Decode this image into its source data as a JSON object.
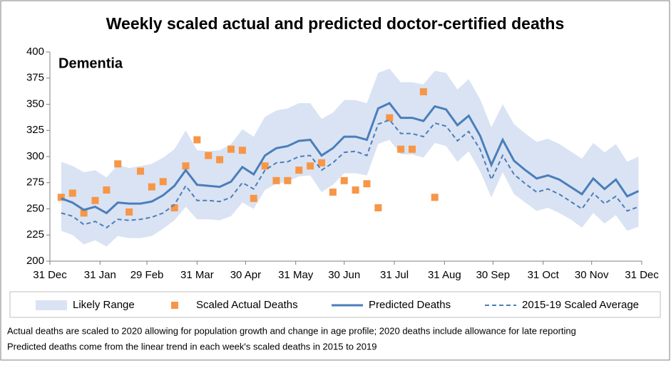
{
  "chart_data": {
    "type": "line",
    "title": "Weekly scaled actual and predicted doctor-certified deaths",
    "annotation": "Dementia",
    "notes": [
      "Actual deaths are scaled to 2020 allowing for population growth and change in age profile; 2020 deaths include allowance for late reporting",
      "Predicted deaths come from the linear trend in each week's scaled deaths in 2015 to 2019"
    ],
    "x": [
      7,
      14,
      21,
      28,
      35,
      42,
      49,
      56,
      63,
      70,
      77,
      84,
      91,
      98,
      105,
      112,
      119,
      126,
      133,
      140,
      147,
      154,
      161,
      168,
      175,
      182,
      189,
      196,
      203,
      210,
      217,
      224,
      231,
      238,
      245,
      252,
      259,
      266,
      273,
      280,
      287,
      294,
      301,
      308,
      315,
      322,
      329,
      336,
      343,
      350,
      357,
      364
    ],
    "xlim": [
      0,
      366
    ],
    "xticks": [
      {
        "value": 0,
        "label": "31 Dec"
      },
      {
        "value": 31,
        "label": "31 Jan"
      },
      {
        "value": 60,
        "label": "29 Feb"
      },
      {
        "value": 91,
        "label": "31 Mar"
      },
      {
        "value": 121,
        "label": "30 Apr"
      },
      {
        "value": 152,
        "label": "31 May"
      },
      {
        "value": 182,
        "label": "30 Jun"
      },
      {
        "value": 213,
        "label": "31 Jul"
      },
      {
        "value": 244,
        "label": "31 Aug"
      },
      {
        "value": 274,
        "label": "30 Sep"
      },
      {
        "value": 305,
        "label": "31 Oct"
      },
      {
        "value": 335,
        "label": "30 Nov"
      },
      {
        "value": 366,
        "label": "31 Dec"
      }
    ],
    "ylim": [
      200,
      400
    ],
    "yticks": [
      200,
      225,
      250,
      275,
      300,
      325,
      350,
      375,
      400
    ],
    "grid": false,
    "series": [
      {
        "name": "Likely Range",
        "kind": "band",
        "color": "#dae3f3",
        "lower": [
          229,
          225,
          216,
          220,
          214,
          224,
          222,
          222,
          224,
          231,
          239,
          252,
          240,
          240,
          239,
          243,
          256,
          250,
          268,
          274,
          276,
          281,
          282,
          266,
          273,
          284,
          284,
          282,
          312,
          316,
          302,
          302,
          299,
          313,
          310,
          295,
          305,
          286,
          261,
          285,
          264,
          256,
          248,
          251,
          246,
          240,
          232,
          246,
          236,
          244,
          229,
          233
        ],
        "upper": [
          295,
          291,
          285,
          287,
          280,
          292,
          289,
          291,
          293,
          299,
          307,
          325,
          306,
          305,
          306,
          312,
          326,
          319,
          338,
          344,
          346,
          351,
          351,
          336,
          342,
          354,
          354,
          351,
          380,
          384,
          371,
          371,
          369,
          382,
          380,
          364,
          374,
          355,
          328,
          350,
          331,
          322,
          314,
          317,
          312,
          305,
          298,
          313,
          304,
          312,
          295,
          300
        ]
      },
      {
        "name": "Scaled Actual Deaths",
        "kind": "marker",
        "color": "#f79646",
        "values": [
          261,
          265,
          246,
          258,
          268,
          293,
          247,
          286,
          271,
          276,
          251,
          291,
          316,
          301,
          297,
          307,
          306,
          260,
          291,
          277,
          277,
          287,
          291,
          294,
          266,
          277,
          268,
          274,
          251,
          337,
          307,
          307,
          362,
          261,
          null,
          null,
          null,
          null,
          null,
          null,
          null,
          null,
          null,
          null,
          null,
          null,
          null,
          null,
          null,
          null,
          null,
          null
        ]
      },
      {
        "name": "Predicted Deaths",
        "kind": "line",
        "color": "#4a7ebb",
        "values": [
          260,
          256,
          249,
          252,
          246,
          256,
          255,
          255,
          257,
          263,
          272,
          287,
          273,
          272,
          271,
          276,
          290,
          283,
          301,
          308,
          310,
          315,
          316,
          301,
          308,
          319,
          319,
          316,
          346,
          351,
          337,
          337,
          334,
          348,
          345,
          330,
          339,
          320,
          292,
          316,
          296,
          287,
          279,
          282,
          278,
          271,
          264,
          279,
          269,
          278,
          262,
          267
        ]
      },
      {
        "name": "2015-19 Scaled Average",
        "kind": "dashed",
        "color": "#4a7ebb",
        "values": [
          246,
          243,
          235,
          238,
          232,
          240,
          239,
          240,
          242,
          246,
          254,
          272,
          258,
          258,
          257,
          261,
          275,
          269,
          287,
          294,
          295,
          300,
          301,
          287,
          294,
          304,
          305,
          301,
          331,
          335,
          322,
          322,
          319,
          332,
          329,
          315,
          324,
          307,
          278,
          301,
          283,
          274,
          266,
          269,
          264,
          257,
          250,
          265,
          255,
          262,
          248,
          252
        ]
      }
    ]
  }
}
